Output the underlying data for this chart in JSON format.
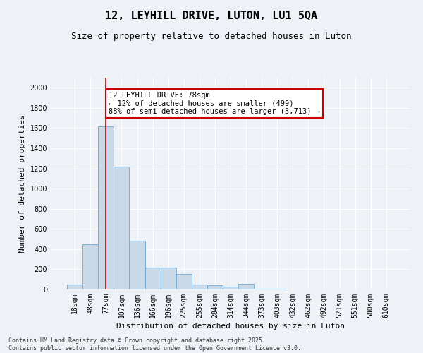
{
  "title1": "12, LEYHILL DRIVE, LUTON, LU1 5QA",
  "title2": "Size of property relative to detached houses in Luton",
  "xlabel": "Distribution of detached houses by size in Luton",
  "ylabel": "Number of detached properties",
  "categories": [
    "18sqm",
    "48sqm",
    "77sqm",
    "107sqm",
    "136sqm",
    "166sqm",
    "196sqm",
    "225sqm",
    "255sqm",
    "284sqm",
    "314sqm",
    "344sqm",
    "373sqm",
    "403sqm",
    "432sqm",
    "462sqm",
    "492sqm",
    "521sqm",
    "551sqm",
    "580sqm",
    "610sqm"
  ],
  "values": [
    50,
    450,
    1620,
    1220,
    480,
    215,
    215,
    155,
    50,
    40,
    30,
    55,
    10,
    5,
    2,
    2,
    1,
    1,
    0,
    0,
    0
  ],
  "bar_color": "#c9d9e8",
  "bar_edge_color": "#7bafd4",
  "vline_x": 2.0,
  "annotation_title": "12 LEYHILL DRIVE: 78sqm",
  "annotation_line1": "← 12% of detached houses are smaller (499)",
  "annotation_line2": "88% of semi-detached houses are larger (3,713) →",
  "annotation_box_color": "#ffffff",
  "annotation_box_edge": "#cc0000",
  "vline_color": "#cc0000",
  "ylim": [
    0,
    2100
  ],
  "yticks": [
    0,
    200,
    400,
    600,
    800,
    1000,
    1200,
    1400,
    1600,
    1800,
    2000
  ],
  "footer1": "Contains HM Land Registry data © Crown copyright and database right 2025.",
  "footer2": "Contains public sector information licensed under the Open Government Licence v3.0.",
  "bg_color": "#eef2f7",
  "grid_color": "#ffffff",
  "title_fontsize": 11,
  "subtitle_fontsize": 9,
  "axis_label_fontsize": 8,
  "tick_fontsize": 7,
  "annotation_fontsize": 7.5,
  "footer_fontsize": 6
}
